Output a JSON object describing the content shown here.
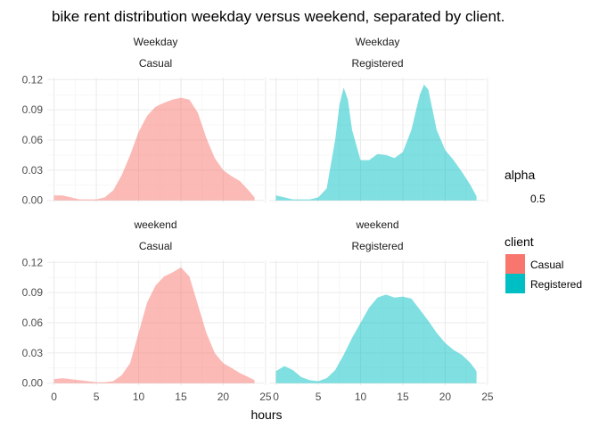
{
  "chart_data": {
    "type": "area",
    "title": "bike rent distribution weekday versus weekend, separated by client.",
    "xlabel": "hours",
    "ylabel": "",
    "xlim": [
      -0.8,
      24.8
    ],
    "ylim": [
      -0.002,
      0.122
    ],
    "x_ticks": [
      0,
      5,
      10,
      15,
      20,
      25
    ],
    "y_ticks": [
      0.0,
      0.03,
      0.06,
      0.09,
      0.12
    ],
    "y_tick_labels": [
      "0.00",
      "0.03",
      "0.06",
      "0.09",
      "0.12"
    ],
    "grid": true,
    "legend_position": "right",
    "alpha": 0.5,
    "colors": {
      "Casual": "#F8766D",
      "Registered": "#00BFC4"
    },
    "panels": [
      {
        "day": "Weekday",
        "client": "Casual",
        "x": [
          0,
          1,
          2,
          3,
          4,
          5,
          6,
          7,
          8,
          9,
          10,
          11,
          12,
          13,
          14,
          15,
          16,
          17,
          18,
          19,
          20,
          21,
          22,
          23,
          23.7
        ],
        "y": [
          0.005,
          0.005,
          0.003,
          0.001,
          0.001,
          0.001,
          0.003,
          0.01,
          0.025,
          0.045,
          0.068,
          0.084,
          0.093,
          0.097,
          0.1,
          0.102,
          0.1,
          0.087,
          0.062,
          0.042,
          0.03,
          0.024,
          0.019,
          0.01,
          0.003
        ]
      },
      {
        "day": "Weekday",
        "client": "Registered",
        "x": [
          0,
          1,
          2,
          3,
          4,
          5,
          6,
          7,
          7.5,
          8,
          8.5,
          9,
          10,
          11,
          12,
          13,
          14,
          15,
          16,
          17,
          17.5,
          18,
          19,
          20,
          21,
          22,
          23,
          23.7
        ],
        "y": [
          0.005,
          0.003,
          0.001,
          0.001,
          0.001,
          0.003,
          0.012,
          0.06,
          0.095,
          0.112,
          0.1,
          0.07,
          0.04,
          0.04,
          0.046,
          0.045,
          0.042,
          0.048,
          0.07,
          0.105,
          0.115,
          0.11,
          0.07,
          0.05,
          0.04,
          0.028,
          0.015,
          0.004
        ]
      },
      {
        "day": "weekend",
        "client": "Casual",
        "x": [
          0,
          1,
          2,
          3,
          4,
          5,
          6,
          7,
          8,
          9,
          10,
          11,
          12,
          13,
          14,
          15,
          16,
          17,
          18,
          19,
          20,
          21,
          22,
          23,
          23.7
        ],
        "y": [
          0.004,
          0.005,
          0.004,
          0.003,
          0.002,
          0.001,
          0.001,
          0.002,
          0.008,
          0.02,
          0.05,
          0.08,
          0.097,
          0.106,
          0.11,
          0.115,
          0.106,
          0.078,
          0.05,
          0.03,
          0.02,
          0.015,
          0.01,
          0.006,
          0.003
        ]
      },
      {
        "day": "weekend",
        "client": "Registered",
        "x": [
          0,
          1,
          2,
          3,
          4,
          5,
          6,
          7,
          8,
          9,
          10,
          11,
          12,
          13,
          14,
          15,
          16,
          17,
          18,
          19,
          20,
          21,
          22,
          23,
          23.7
        ],
        "y": [
          0.012,
          0.017,
          0.013,
          0.006,
          0.003,
          0.002,
          0.005,
          0.013,
          0.028,
          0.045,
          0.06,
          0.075,
          0.085,
          0.088,
          0.085,
          0.086,
          0.084,
          0.073,
          0.062,
          0.05,
          0.04,
          0.033,
          0.028,
          0.02,
          0.012
        ]
      }
    ]
  },
  "legend": {
    "alpha_title": "alpha",
    "alpha_value": "0.5",
    "client_title": "client",
    "items": [
      "Casual",
      "Registered"
    ]
  }
}
